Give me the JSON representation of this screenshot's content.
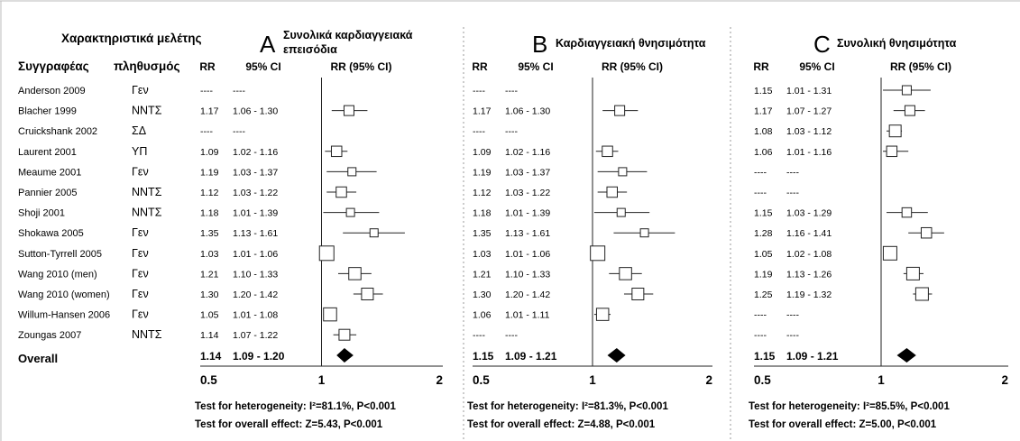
{
  "study_header": "Χαρακτηριστικά μελέτης",
  "col_author": "Συγγραφέας",
  "col_population": "πληθυσμός",
  "col_rr": "RR",
  "col_ci": "95% CI",
  "col_plot": "RR (95% CI)",
  "studies": [
    {
      "name": "Anderson 2009",
      "population": "Γεν"
    },
    {
      "name": "Blacher 1999",
      "population": "ΝΝΤΣ"
    },
    {
      "name": "Cruickshank 2002",
      "population": "ΣΔ"
    },
    {
      "name": "Laurent 2001",
      "population": "ΥΠ"
    },
    {
      "name": "Meaume 2001",
      "population": "Γεν"
    },
    {
      "name": "Pannier 2005",
      "population": "ΝΝΤΣ"
    },
    {
      "name": "Shoji 2001",
      "population": "ΝΝΤΣ"
    },
    {
      "name": "Shokawa 2005",
      "population": "Γεν"
    },
    {
      "name": "Sutton-Tyrrell 2005",
      "population": "Γεν"
    },
    {
      "name": "Wang 2010 (men)",
      "population": "Γεν"
    },
    {
      "name": "Wang 2010 (women)",
      "population": "Γεν"
    },
    {
      "name": "Willum-Hansen 2006",
      "population": "Γεν"
    },
    {
      "name": "Zoungas 2007",
      "population": "ΝΝΤΣ"
    }
  ],
  "overall_label": "Overall",
  "missing": "----",
  "chart_data": [
    {
      "type": "forest",
      "panel_letter": "A",
      "title": "Συνολικά καρδιαγγειακά επεισόδια",
      "x_ticks": [
        "0.5",
        "1",
        "2"
      ],
      "xlim": [
        0.5,
        2
      ],
      "x_scale": "log",
      "reference_line": 1,
      "rows": [
        {
          "rr": null,
          "lo": null,
          "hi": null,
          "rr_text": "----",
          "ci_text": "----",
          "weight": 0
        },
        {
          "rr": 1.17,
          "lo": 1.06,
          "hi": 1.3,
          "rr_text": "1.17",
          "ci_text": "1.06 - 1.30",
          "weight": 0.5
        },
        {
          "rr": null,
          "lo": null,
          "hi": null,
          "rr_text": "----",
          "ci_text": "----",
          "weight": 0
        },
        {
          "rr": 1.09,
          "lo": 1.02,
          "hi": 1.16,
          "rr_text": "1.09",
          "ci_text": "1.02 - 1.16",
          "weight": 0.55
        },
        {
          "rr": 1.19,
          "lo": 1.03,
          "hi": 1.37,
          "rr_text": "1.19",
          "ci_text": "1.03 - 1.37",
          "weight": 0.3
        },
        {
          "rr": 1.12,
          "lo": 1.03,
          "hi": 1.22,
          "rr_text": "1.12",
          "ci_text": "1.03 - 1.22",
          "weight": 0.55
        },
        {
          "rr": 1.18,
          "lo": 1.01,
          "hi": 1.39,
          "rr_text": "1.18",
          "ci_text": "1.01 - 1.39",
          "weight": 0.3
        },
        {
          "rr": 1.35,
          "lo": 1.13,
          "hi": 1.61,
          "rr_text": "1.35",
          "ci_text": "1.13 - 1.61",
          "weight": 0.3
        },
        {
          "rr": 1.03,
          "lo": 1.01,
          "hi": 1.06,
          "rr_text": "1.03",
          "ci_text": "1.01 - 1.06",
          "weight": 1.0
        },
        {
          "rr": 1.21,
          "lo": 1.1,
          "hi": 1.33,
          "rr_text": "1.21",
          "ci_text": "1.10 - 1.33",
          "weight": 0.75
        },
        {
          "rr": 1.3,
          "lo": 1.2,
          "hi": 1.42,
          "rr_text": "1.30",
          "ci_text": "1.20 - 1.42",
          "weight": 0.7
        },
        {
          "rr": 1.05,
          "lo": 1.01,
          "hi": 1.08,
          "rr_text": "1.05",
          "ci_text": "1.01 - 1.08",
          "weight": 0.85
        },
        {
          "rr": 1.14,
          "lo": 1.07,
          "hi": 1.22,
          "rr_text": "1.14",
          "ci_text": "1.07 - 1.22",
          "weight": 0.6
        }
      ],
      "overall": {
        "rr": 1.14,
        "lo": 1.09,
        "hi": 1.2,
        "rr_text": "1.14",
        "ci_text": "1.09 - 1.20"
      },
      "heterogeneity": "Test for heterogeneity: I²=81.1%, P<0.001",
      "overall_effect": "Test for overall effect: Z=5.43, P<0.001"
    },
    {
      "type": "forest",
      "panel_letter": "B",
      "title": "Καρδιαγγειακή θνησιμότητα",
      "x_ticks": [
        "0.5",
        "1",
        "2"
      ],
      "xlim": [
        0.5,
        2
      ],
      "x_scale": "log",
      "reference_line": 1,
      "rows": [
        {
          "rr": null,
          "lo": null,
          "hi": null,
          "rr_text": "----",
          "ci_text": "----",
          "weight": 0
        },
        {
          "rr": 1.17,
          "lo": 1.06,
          "hi": 1.3,
          "rr_text": "1.17",
          "ci_text": "1.06 - 1.30",
          "weight": 0.5
        },
        {
          "rr": null,
          "lo": null,
          "hi": null,
          "rr_text": "----",
          "ci_text": "----",
          "weight": 0
        },
        {
          "rr": 1.09,
          "lo": 1.02,
          "hi": 1.16,
          "rr_text": "1.09",
          "ci_text": "1.02 - 1.16",
          "weight": 0.55
        },
        {
          "rr": 1.19,
          "lo": 1.03,
          "hi": 1.37,
          "rr_text": "1.19",
          "ci_text": "1.03 - 1.37",
          "weight": 0.3
        },
        {
          "rr": 1.12,
          "lo": 1.03,
          "hi": 1.22,
          "rr_text": "1.12",
          "ci_text": "1.03 - 1.22",
          "weight": 0.55
        },
        {
          "rr": 1.18,
          "lo": 1.01,
          "hi": 1.39,
          "rr_text": "1.18",
          "ci_text": "1.01 - 1.39",
          "weight": 0.3
        },
        {
          "rr": 1.35,
          "lo": 1.13,
          "hi": 1.61,
          "rr_text": "1.35",
          "ci_text": "1.13 - 1.61",
          "weight": 0.3
        },
        {
          "rr": 1.03,
          "lo": 1.01,
          "hi": 1.06,
          "rr_text": "1.03",
          "ci_text": "1.01 - 1.06",
          "weight": 1.0
        },
        {
          "rr": 1.21,
          "lo": 1.1,
          "hi": 1.33,
          "rr_text": "1.21",
          "ci_text": "1.10 - 1.33",
          "weight": 0.75
        },
        {
          "rr": 1.3,
          "lo": 1.2,
          "hi": 1.42,
          "rr_text": "1.30",
          "ci_text": "1.20 - 1.42",
          "weight": 0.7
        },
        {
          "rr": 1.06,
          "lo": 1.01,
          "hi": 1.11,
          "rr_text": "1.06",
          "ci_text": "1.01 - 1.11",
          "weight": 0.75
        },
        {
          "rr": null,
          "lo": null,
          "hi": null,
          "rr_text": "----",
          "ci_text": "----",
          "weight": 0
        }
      ],
      "overall": {
        "rr": 1.15,
        "lo": 1.09,
        "hi": 1.21,
        "rr_text": "1.15",
        "ci_text": "1.09 - 1.21"
      },
      "heterogeneity": "Test for heterogeneity: I²=81.3%, P<0.001",
      "overall_effect": "Test for overall effect: Z=4.88, P<0.001"
    },
    {
      "type": "forest",
      "panel_letter": "C",
      "title": "Συνολική θνησιμότητα",
      "x_ticks": [
        "0.5",
        "1",
        "2"
      ],
      "xlim": [
        0.5,
        2
      ],
      "x_scale": "log",
      "reference_line": 1,
      "rows": [
        {
          "rr": 1.15,
          "lo": 1.01,
          "hi": 1.31,
          "rr_text": "1.15",
          "ci_text": "1.01 - 1.31",
          "weight": 0.4
        },
        {
          "rr": 1.17,
          "lo": 1.07,
          "hi": 1.27,
          "rr_text": "1.17",
          "ci_text": "1.07 - 1.27",
          "weight": 0.5
        },
        {
          "rr": 1.08,
          "lo": 1.03,
          "hi": 1.12,
          "rr_text": "1.08",
          "ci_text": "1.03 - 1.12",
          "weight": 0.7
        },
        {
          "rr": 1.06,
          "lo": 1.01,
          "hi": 1.16,
          "rr_text": "1.06",
          "ci_text": "1.01 - 1.16",
          "weight": 0.55
        },
        {
          "rr": null,
          "lo": null,
          "hi": null,
          "rr_text": "----",
          "ci_text": "----",
          "weight": 0
        },
        {
          "rr": null,
          "lo": null,
          "hi": null,
          "rr_text": "----",
          "ci_text": "----",
          "weight": 0
        },
        {
          "rr": 1.15,
          "lo": 1.03,
          "hi": 1.29,
          "rr_text": "1.15",
          "ci_text": "1.03 - 1.29",
          "weight": 0.45
        },
        {
          "rr": 1.28,
          "lo": 1.16,
          "hi": 1.41,
          "rr_text": "1.28",
          "ci_text": "1.16 - 1.41",
          "weight": 0.55
        },
        {
          "rr": 1.05,
          "lo": 1.02,
          "hi": 1.08,
          "rr_text": "1.05",
          "ci_text": "1.02 - 1.08",
          "weight": 0.9
        },
        {
          "rr": 1.19,
          "lo": 1.13,
          "hi": 1.26,
          "rr_text": "1.19",
          "ci_text": "1.13 - 1.26",
          "weight": 0.8
        },
        {
          "rr": 1.25,
          "lo": 1.19,
          "hi": 1.32,
          "rr_text": "1.25",
          "ci_text": "1.19 - 1.32",
          "weight": 0.8
        },
        {
          "rr": null,
          "lo": null,
          "hi": null,
          "rr_text": "----",
          "ci_text": "----",
          "weight": 0
        },
        {
          "rr": null,
          "lo": null,
          "hi": null,
          "rr_text": "----",
          "ci_text": "----",
          "weight": 0
        }
      ],
      "overall": {
        "rr": 1.15,
        "lo": 1.09,
        "hi": 1.21,
        "rr_text": "1.15",
        "ci_text": "1.09 - 1.21"
      },
      "heterogeneity": "Test for heterogeneity: I²=85.5%, P<0.001",
      "overall_effect": "Test for overall effect: Z=5.00, P<0.001"
    }
  ]
}
